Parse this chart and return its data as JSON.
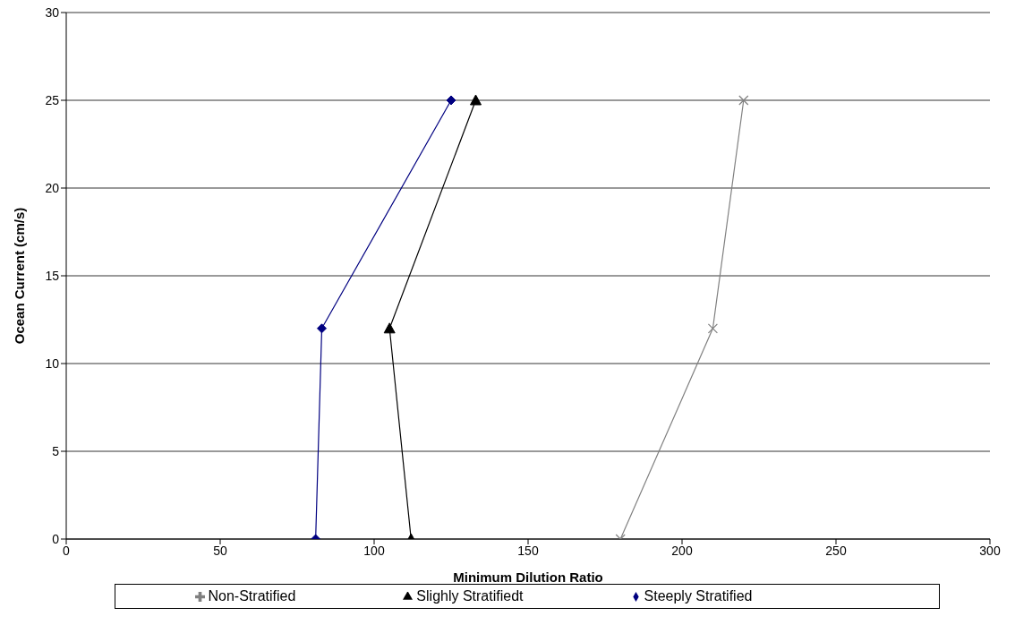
{
  "chart_data": {
    "type": "line",
    "xlabel": "Minimum Dilution Ratio",
    "ylabel": "Ocean Current (cm/s)",
    "xlim": [
      0,
      300
    ],
    "xticks": [
      0,
      50,
      100,
      150,
      200,
      250,
      300
    ],
    "ylim": [
      0,
      30
    ],
    "yticks": [
      0,
      5,
      10,
      15,
      20,
      25,
      30
    ],
    "grid": "y",
    "legend": "bottom",
    "line_style": "solid",
    "series": [
      {
        "name": "Steeply Stratified",
        "color": "#000080",
        "marker": "diamond",
        "x": [
          81,
          83,
          125
        ],
        "values": [
          0,
          12,
          25
        ]
      },
      {
        "name": "Slighly Stratifiedt",
        "color": "#000000",
        "marker": "triangle",
        "x": [
          112,
          105,
          133
        ],
        "values": [
          0,
          12,
          25
        ]
      },
      {
        "name": "Non-Stratified",
        "color": "#808080",
        "marker": "cross",
        "x": [
          180,
          210,
          220
        ],
        "values": [
          0,
          12,
          25
        ]
      }
    ]
  }
}
